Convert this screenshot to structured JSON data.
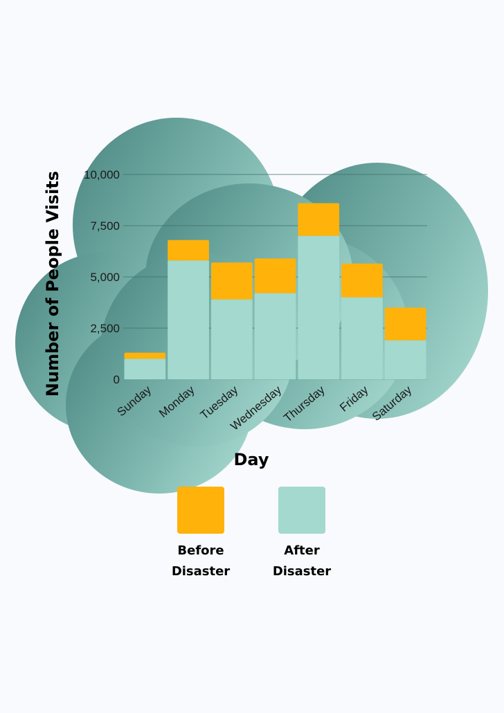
{
  "chart_data": {
    "type": "bar",
    "stacked": true,
    "categories": [
      "Sunday",
      "Monday",
      "Tuesday",
      "Wednesday",
      "Thursday",
      "Friday",
      "Saturday"
    ],
    "series": [
      {
        "name": "After Disaster",
        "values": [
          1000,
          5800,
          3900,
          4200,
          7000,
          4000,
          1900
        ]
      },
      {
        "name": "Before Disaster",
        "values": [
          300,
          1000,
          1800,
          1700,
          1600,
          1650,
          1600
        ]
      }
    ],
    "xlabel": "Day",
    "ylabel": "Number of People Visits",
    "ylim": [
      0,
      10000
    ],
    "yticks": [
      0,
      2500,
      5000,
      7500,
      10000
    ],
    "ytick_labels": [
      "0",
      "2,500",
      "5,000",
      "7,500",
      "10,000"
    ],
    "grid": true,
    "legend": "bottom"
  },
  "legend": [
    {
      "label_line1": "Before",
      "label_line2": "Disaster"
    },
    {
      "label_line1": "After",
      "label_line2": "Disaster"
    }
  ],
  "colors": {
    "before_disaster": "#ffb20a",
    "after_disaster": "#a3d9cf",
    "blob_dark": "#4f8a85",
    "blob_light": "#a3d6cd",
    "gridline": "#3f6e69"
  }
}
